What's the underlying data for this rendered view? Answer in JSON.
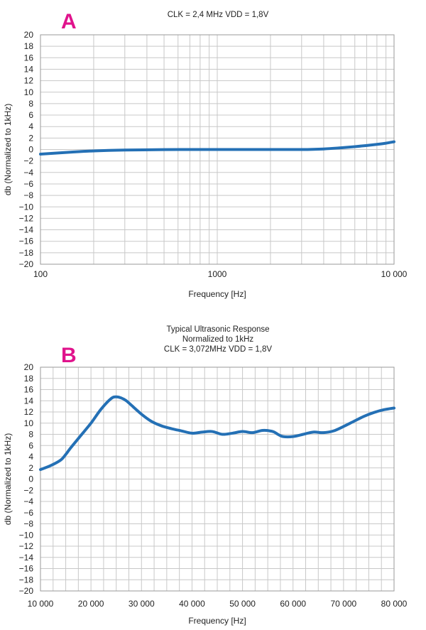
{
  "chart_data": [
    {
      "type": "line",
      "panel_label": "A",
      "title_lines": [
        "CLK = 2,4 MHz VDD = 1,8V"
      ],
      "xlabel": "Frequency [Hz]",
      "ylabel": "db (Normalized to 1kHz)",
      "x_scale": "log",
      "xlim": [
        100,
        10000
      ],
      "ylim": [
        -20,
        20
      ],
      "x_tick_labels": [
        {
          "value": 100,
          "label": "100"
        },
        {
          "value": 1000,
          "label": "1000"
        },
        {
          "value": 10000,
          "label": "10 000"
        }
      ],
      "y_ticks": [
        20,
        18,
        16,
        14,
        12,
        10,
        8,
        6,
        4,
        2,
        0,
        -2,
        -4,
        -6,
        -8,
        -10,
        -12,
        -14,
        -16,
        -18,
        -20
      ],
      "grid": true,
      "legend": "none",
      "series": [
        {
          "color": "#2470b5",
          "x": [
            100,
            150,
            200,
            300,
            500,
            700,
            1000,
            1500,
            2000,
            3000,
            4000,
            5000,
            6000,
            7000,
            8000,
            9000,
            10000
          ],
          "y": [
            -0.8,
            -0.45,
            -0.25,
            -0.1,
            -0.02,
            0,
            0,
            0,
            0,
            0,
            0.1,
            0.3,
            0.5,
            0.7,
            0.9,
            1.1,
            1.35
          ]
        }
      ]
    },
    {
      "type": "line",
      "panel_label": "B",
      "title_lines": [
        "Typical Ultrasonic Response",
        "Normalized to 1kHz",
        "CLK = 3,072MHz VDD = 1,8V"
      ],
      "xlabel": "Frequency [Hz]",
      "ylabel": "db (Normalized to 1kHz)",
      "x_scale": "linear",
      "xlim": [
        10000,
        80000
      ],
      "ylim": [
        -20,
        20
      ],
      "x_tick_labels": [
        {
          "value": 10000,
          "label": "10 000"
        },
        {
          "value": 20000,
          "label": "20 000"
        },
        {
          "value": 30000,
          "label": "30 000"
        },
        {
          "value": 40000,
          "label": "40 000"
        },
        {
          "value": 50000,
          "label": "50 000"
        },
        {
          "value": 60000,
          "label": "60 000"
        },
        {
          "value": 70000,
          "label": "70 000"
        },
        {
          "value": 80000,
          "label": "80 000"
        }
      ],
      "x_minor_step": 2500,
      "y_ticks": [
        20,
        18,
        16,
        14,
        12,
        10,
        8,
        6,
        4,
        2,
        0,
        -2,
        -4,
        -6,
        -8,
        -10,
        -12,
        -14,
        -16,
        -18,
        -20
      ],
      "grid": true,
      "legend": "none",
      "series": [
        {
          "color": "#2470b5",
          "x": [
            10000,
            12000,
            14000,
            15000,
            16000,
            18000,
            20000,
            22000,
            24000,
            25000,
            26000,
            27000,
            28000,
            30000,
            32000,
            34000,
            36000,
            38000,
            40000,
            42000,
            44000,
            46000,
            48000,
            50000,
            52000,
            54000,
            56000,
            57000,
            58000,
            60000,
            62000,
            64000,
            66000,
            68000,
            70000,
            72000,
            74000,
            76000,
            78000,
            80000
          ],
          "y": [
            1.7,
            2.4,
            3.4,
            4.4,
            5.6,
            7.8,
            10,
            12.5,
            14.4,
            14.7,
            14.5,
            14,
            13.2,
            11.6,
            10.3,
            9.5,
            9.0,
            8.6,
            8.2,
            8.4,
            8.5,
            8.0,
            8.2,
            8.5,
            8.3,
            8.7,
            8.5,
            8.0,
            7.6,
            7.6,
            8.0,
            8.4,
            8.3,
            8.6,
            9.4,
            10.3,
            11.2,
            11.9,
            12.4,
            12.7
          ]
        }
      ]
    }
  ]
}
